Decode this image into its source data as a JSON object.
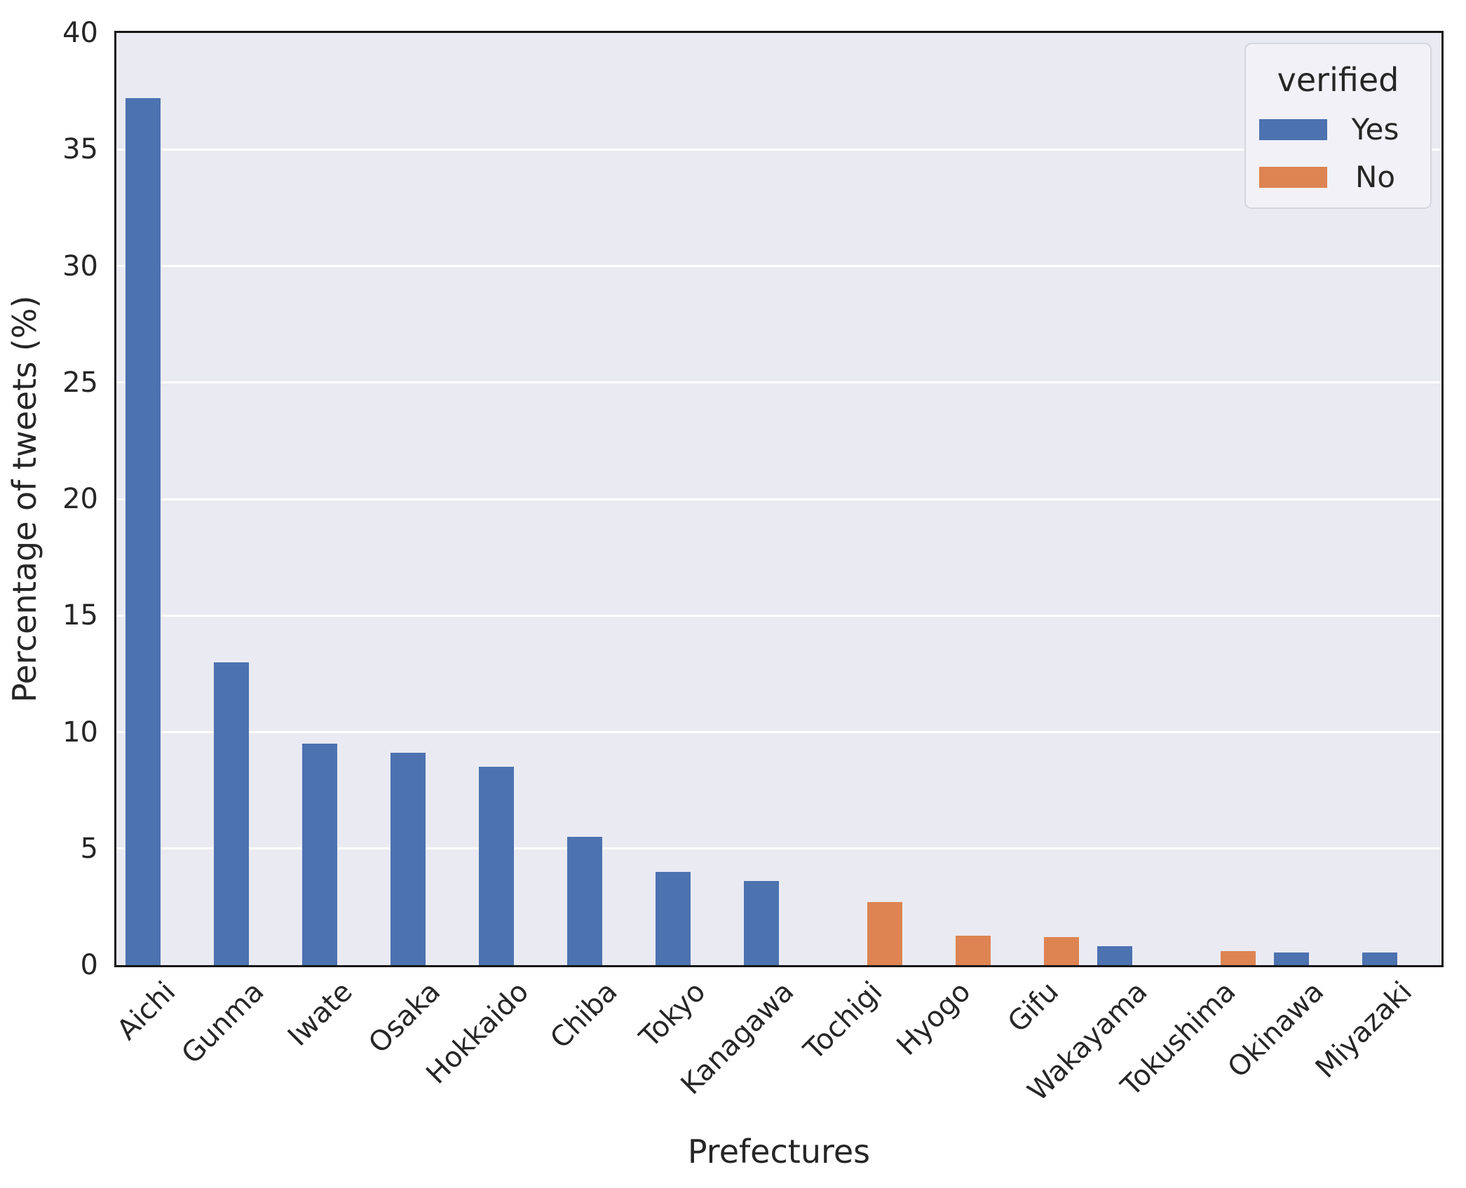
{
  "chart_data": {
    "type": "bar",
    "title": "",
    "xlabel": "Prefectures",
    "ylabel": "Percentage of tweets (%)",
    "ylim": [
      0,
      40
    ],
    "yticks": [
      0,
      5,
      10,
      15,
      20,
      25,
      30,
      35,
      40
    ],
    "grid": "horizontal",
    "panel_bg": "#EAEAF2",
    "grid_color": "#FFFFFF",
    "categories": [
      "Aichi",
      "Gunma",
      "Iwate",
      "Osaka",
      "Hokkaido",
      "Chiba",
      "Tokyo",
      "Kanagawa",
      "Tochigi",
      "Hyogo",
      "Gifu",
      "Wakayama",
      "Tokushima",
      "Okinawa",
      "Miyazaki"
    ],
    "series": [
      {
        "name": "Yes",
        "color": "#4C72B0",
        "values": [
          37.2,
          13.0,
          9.5,
          9.1,
          8.5,
          5.5,
          4.0,
          3.6,
          null,
          null,
          null,
          0.8,
          null,
          0.55,
          0.55
        ]
      },
      {
        "name": "No",
        "color": "#DD8452",
        "values": [
          null,
          null,
          null,
          null,
          null,
          null,
          null,
          null,
          2.7,
          1.25,
          1.2,
          null,
          0.6,
          null,
          null
        ]
      }
    ],
    "legend": {
      "title": "verified",
      "position": "upper-right",
      "entries": [
        {
          "label": "Yes",
          "color": "#4C72B0"
        },
        {
          "label": "No",
          "color": "#DD8452"
        }
      ]
    }
  }
}
